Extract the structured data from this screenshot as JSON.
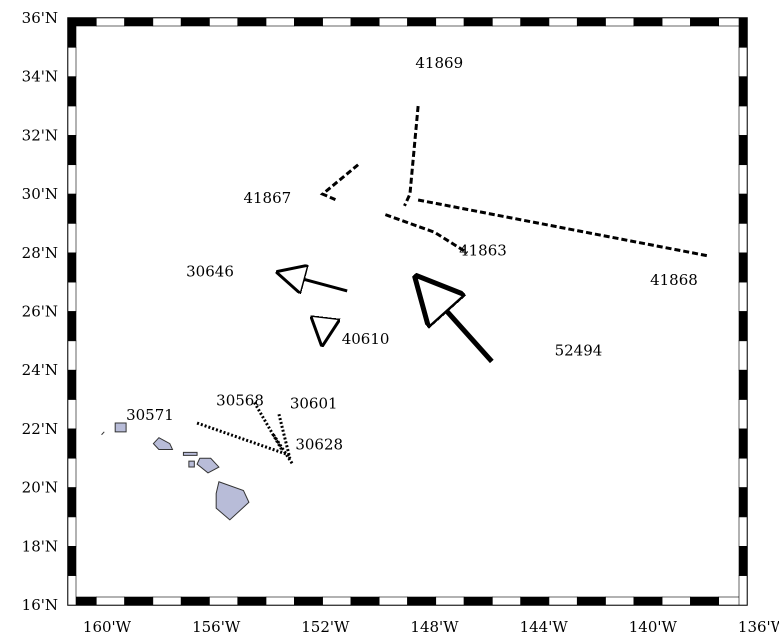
{
  "latitude_labels": [
    "36'N",
    "34'N",
    "32'N",
    "30'N",
    "28'N",
    "26'N",
    "24'N",
    "22'N",
    "20'N",
    "18'N",
    "16'N"
  ],
  "longitude_labels": [
    "160'W",
    "156'W",
    "152'W",
    "148'W",
    "144'W",
    "140'W",
    "136'W"
  ],
  "colors": {
    "land": "#b8bcd8",
    "ink": "#000000",
    "frame": "#000000"
  },
  "tracks": [
    {
      "id": "41869",
      "style": "dashed",
      "points": [
        [
          -148.6,
          33.0
        ],
        [
          -148.9,
          30.0
        ],
        [
          -149.1,
          29.6
        ]
      ]
    },
    {
      "id": "41867",
      "style": "dashed",
      "points": [
        [
          -150.8,
          31.0
        ],
        [
          -152.1,
          30.0
        ],
        [
          -151.6,
          29.8
        ]
      ]
    },
    {
      "id": "41863",
      "style": "dashed",
      "points": [
        [
          -149.8,
          29.3
        ],
        [
          -148.0,
          28.7
        ],
        [
          -146.8,
          28.0
        ]
      ]
    },
    {
      "id": "41868",
      "style": "dashed",
      "points": [
        [
          -148.6,
          29.8
        ],
        [
          -138.0,
          27.9
        ]
      ]
    },
    {
      "id": "30646",
      "style": "solid",
      "points": [
        [
          -151.2,
          26.7
        ],
        [
          -153.6,
          27.3
        ]
      ],
      "arrow": true
    },
    {
      "id": "40610",
      "style": "solid",
      "points": [
        [
          -152.0,
          25.8
        ],
        [
          -152.1,
          25.0
        ]
      ],
      "arrow": true
    },
    {
      "id": "52494",
      "style": "solid",
      "points": [
        [
          -145.9,
          24.3
        ],
        [
          -148.5,
          27.0
        ]
      ],
      "arrow": true,
      "heavy": true
    },
    {
      "id": "30571",
      "style": "dotted",
      "points": [
        [
          -156.7,
          22.2
        ],
        [
          -153.3,
          21.1
        ]
      ]
    },
    {
      "id": "30568",
      "style": "dotted",
      "points": [
        [
          -154.6,
          22.9
        ],
        [
          -153.6,
          21.3
        ]
      ]
    },
    {
      "id": "30601",
      "style": "dotted",
      "points": [
        [
          -153.7,
          22.5
        ],
        [
          -153.3,
          21.0
        ]
      ]
    },
    {
      "id": "30628",
      "style": "dotted",
      "points": [
        [
          -153.9,
          21.8
        ],
        [
          -153.2,
          20.8
        ]
      ]
    }
  ],
  "labels": [
    {
      "text": "41869",
      "lon": -148.7,
      "lat": 34.3
    },
    {
      "text": "41867",
      "lon": -155.0,
      "lat": 29.7
    },
    {
      "text": "41863",
      "lon": -147.1,
      "lat": 27.9
    },
    {
      "text": "41868",
      "lon": -140.1,
      "lat": 26.9
    },
    {
      "text": "30646",
      "lon": -157.1,
      "lat": 27.2
    },
    {
      "text": "40610",
      "lon": -151.4,
      "lat": 24.9
    },
    {
      "text": "52494",
      "lon": -143.6,
      "lat": 24.5
    },
    {
      "text": "30568",
      "lon": -156.0,
      "lat": 22.8
    },
    {
      "text": "30571",
      "lon": -159.3,
      "lat": 22.3
    },
    {
      "text": "30601",
      "lon": -153.3,
      "lat": 22.7
    },
    {
      "text": "30628",
      "lon": -153.1,
      "lat": 21.3
    }
  ],
  "islands": [
    {
      "name": "Kauai",
      "points": [
        [
          -159.7,
          22.2
        ],
        [
          -159.3,
          22.2
        ],
        [
          -159.3,
          21.9
        ],
        [
          -159.7,
          21.9
        ]
      ]
    },
    {
      "name": "Niihau",
      "points": [
        [
          -160.1,
          21.9
        ],
        [
          -160.2,
          21.8
        ]
      ]
    },
    {
      "name": "Oahu",
      "points": [
        [
          -158.1,
          21.7
        ],
        [
          -157.7,
          21.5
        ],
        [
          -157.6,
          21.3
        ],
        [
          -158.1,
          21.3
        ],
        [
          -158.3,
          21.5
        ]
      ]
    },
    {
      "name": "Molokai",
      "points": [
        [
          -157.2,
          21.2
        ],
        [
          -156.7,
          21.2
        ],
        [
          -156.7,
          21.1
        ],
        [
          -157.2,
          21.1
        ]
      ]
    },
    {
      "name": "Maui",
      "points": [
        [
          -156.6,
          21.0
        ],
        [
          -156.2,
          21.0
        ],
        [
          -155.9,
          20.7
        ],
        [
          -156.3,
          20.5
        ],
        [
          -156.7,
          20.8
        ]
      ]
    },
    {
      "name": "Lanai",
      "points": [
        [
          -157.0,
          20.9
        ],
        [
          -156.8,
          20.9
        ],
        [
          -156.8,
          20.7
        ],
        [
          -157.0,
          20.7
        ]
      ]
    },
    {
      "name": "Hawaii",
      "points": [
        [
          -155.9,
          20.2
        ],
        [
          -155.0,
          19.9
        ],
        [
          -154.8,
          19.5
        ],
        [
          -155.5,
          18.9
        ],
        [
          -156.0,
          19.3
        ],
        [
          -156.0,
          19.8
        ]
      ]
    }
  ]
}
